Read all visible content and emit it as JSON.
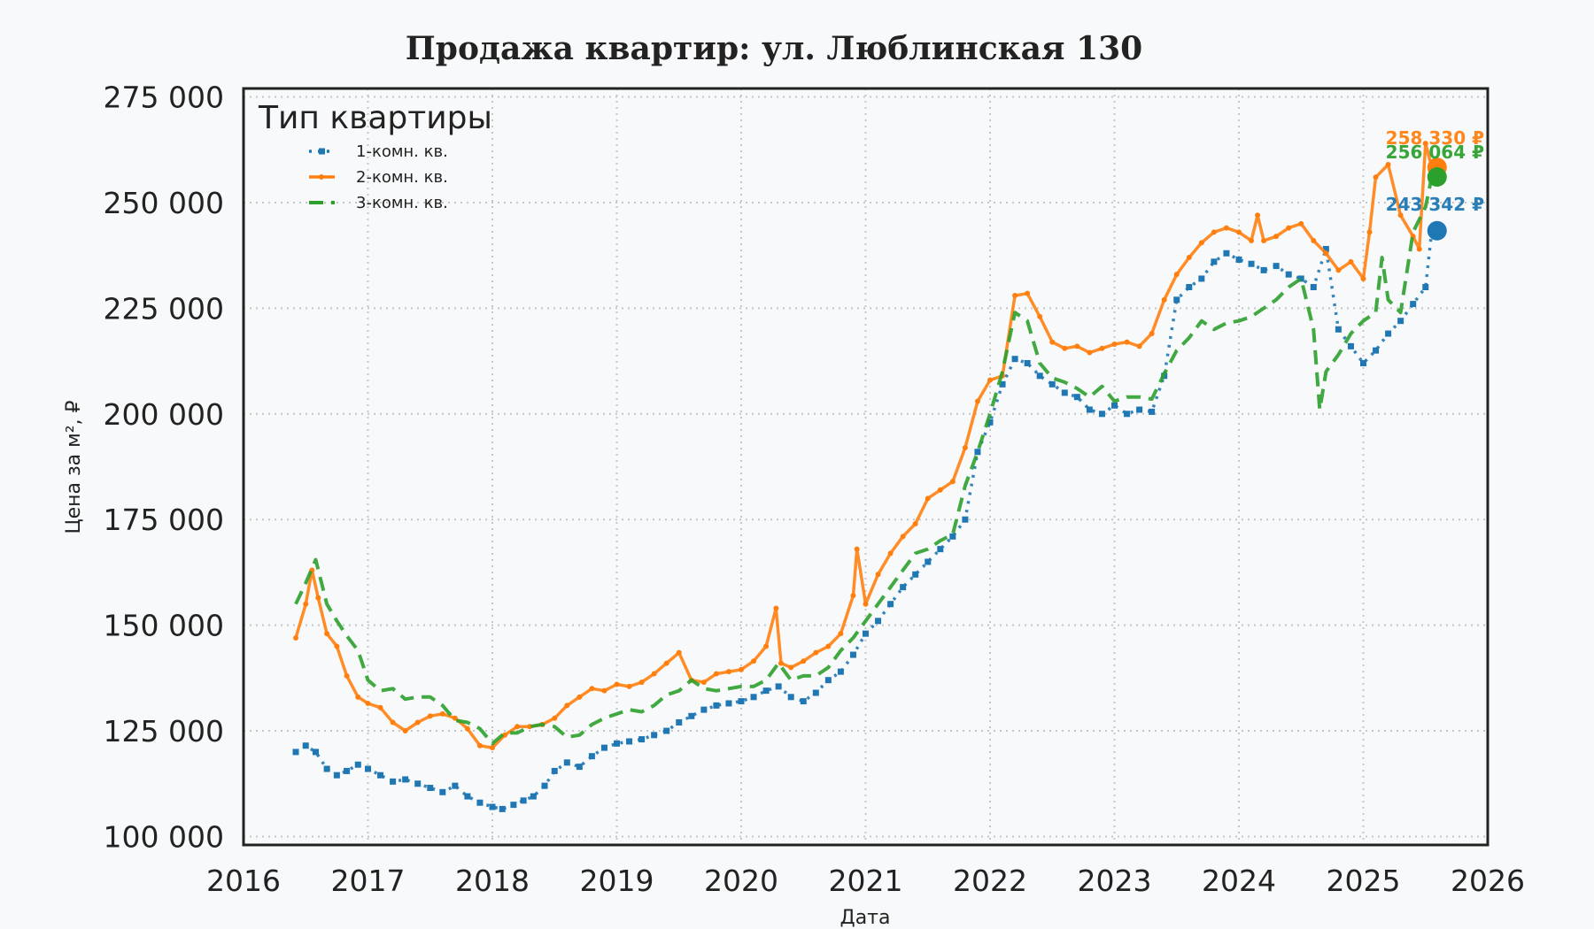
{
  "chart_data": {
    "type": "line",
    "title": "Продажа квартир: ул. Люблинская 130",
    "xlabel": "Дата",
    "ylabel": "Цена за м², ₽",
    "xlim": [
      2016,
      2026
    ],
    "ylim": [
      98000,
      277000
    ],
    "x_ticks": [
      "2016",
      "2017",
      "2018",
      "2019",
      "2020",
      "2021",
      "2022",
      "2023",
      "2024",
      "2025",
      "2026"
    ],
    "y_ticks": [
      "100 000",
      "125 000",
      "150 000",
      "175 000",
      "200 000",
      "225 000",
      "250 000",
      "275 000"
    ],
    "y_tick_values": [
      100000,
      125000,
      150000,
      175000,
      200000,
      225000,
      250000,
      275000
    ],
    "grid": true,
    "legend": {
      "title": "Тип квартиры",
      "position": "top-left"
    },
    "series": [
      {
        "name": "1-комн. кв.",
        "color": "#1f77b4",
        "style": "dotted-square",
        "end_label": "243 342 ₽",
        "end_value": 243342,
        "x": [
          2016.42,
          2016.5,
          2016.58,
          2016.67,
          2016.75,
          2016.83,
          2016.92,
          2017.0,
          2017.1,
          2017.2,
          2017.3,
          2017.4,
          2017.5,
          2017.6,
          2017.7,
          2017.8,
          2017.9,
          2018.0,
          2018.08,
          2018.17,
          2018.25,
          2018.33,
          2018.42,
          2018.5,
          2018.6,
          2018.7,
          2018.8,
          2018.9,
          2019.0,
          2019.1,
          2019.2,
          2019.3,
          2019.4,
          2019.5,
          2019.6,
          2019.7,
          2019.8,
          2019.9,
          2020.0,
          2020.1,
          2020.2,
          2020.3,
          2020.4,
          2020.5,
          2020.6,
          2020.7,
          2020.8,
          2020.9,
          2021.0,
          2021.1,
          2021.2,
          2021.3,
          2021.4,
          2021.5,
          2021.6,
          2021.7,
          2021.8,
          2021.9,
          2022.0,
          2022.1,
          2022.2,
          2022.3,
          2022.4,
          2022.5,
          2022.6,
          2022.7,
          2022.8,
          2022.9,
          2023.0,
          2023.1,
          2023.2,
          2023.3,
          2023.4,
          2023.5,
          2023.6,
          2023.7,
          2023.8,
          2023.9,
          2024.0,
          2024.1,
          2024.2,
          2024.3,
          2024.4,
          2024.5,
          2024.6,
          2024.7,
          2024.8,
          2024.9,
          2025.0,
          2025.1,
          2025.2,
          2025.3,
          2025.4,
          2025.5,
          2025.55
        ],
        "values": [
          120000,
          121500,
          120000,
          116000,
          114500,
          115500,
          117000,
          116000,
          114500,
          113000,
          113500,
          112500,
          111500,
          110500,
          112000,
          109500,
          108000,
          107000,
          106500,
          107500,
          108500,
          109500,
          112000,
          115500,
          117500,
          116500,
          119000,
          121000,
          122000,
          122500,
          123000,
          124000,
          125000,
          127000,
          128500,
          130000,
          131000,
          131500,
          132000,
          133000,
          134500,
          135500,
          133000,
          132000,
          134000,
          137000,
          139000,
          143000,
          148000,
          151000,
          155000,
          159000,
          162000,
          165000,
          168000,
          171000,
          175000,
          191000,
          198000,
          207000,
          213000,
          212000,
          209000,
          207000,
          205000,
          204000,
          201000,
          200000,
          202000,
          200000,
          201000,
          200500,
          209000,
          227000,
          230000,
          232000,
          236000,
          238000,
          236500,
          235500,
          234000,
          235000,
          233000,
          232000,
          230000,
          239000,
          220000,
          216000,
          212000,
          215000,
          219000,
          222000,
          226000,
          230000,
          243342
        ]
      },
      {
        "name": "2-комн. кв.",
        "color": "#ff7f0e",
        "style": "solid-dot",
        "end_label": "258 330 ₽",
        "end_value": 258330,
        "x": [
          2016.42,
          2016.5,
          2016.55,
          2016.6,
          2016.67,
          2016.75,
          2016.83,
          2016.92,
          2017.0,
          2017.1,
          2017.2,
          2017.3,
          2017.4,
          2017.5,
          2017.6,
          2017.7,
          2017.8,
          2017.9,
          2018.0,
          2018.1,
          2018.2,
          2018.3,
          2018.4,
          2018.5,
          2018.6,
          2018.7,
          2018.8,
          2018.9,
          2019.0,
          2019.1,
          2019.2,
          2019.3,
          2019.4,
          2019.5,
          2019.6,
          2019.7,
          2019.8,
          2019.9,
          2020.0,
          2020.1,
          2020.2,
          2020.28,
          2020.32,
          2020.4,
          2020.5,
          2020.6,
          2020.7,
          2020.8,
          2020.9,
          2020.93,
          2021.0,
          2021.1,
          2021.2,
          2021.3,
          2021.4,
          2021.5,
          2021.6,
          2021.7,
          2021.8,
          2021.9,
          2022.0,
          2022.1,
          2022.2,
          2022.3,
          2022.4,
          2022.5,
          2022.6,
          2022.7,
          2022.8,
          2022.9,
          2023.0,
          2023.1,
          2023.2,
          2023.3,
          2023.4,
          2023.5,
          2023.6,
          2023.7,
          2023.8,
          2023.9,
          2024.0,
          2024.1,
          2024.15,
          2024.2,
          2024.3,
          2024.4,
          2024.5,
          2024.6,
          2024.7,
          2024.8,
          2024.9,
          2025.0,
          2025.05,
          2025.1,
          2025.2,
          2025.3,
          2025.4,
          2025.45,
          2025.5,
          2025.55
        ],
        "values": [
          147000,
          155000,
          163000,
          156500,
          148000,
          145000,
          138000,
          133000,
          131500,
          130500,
          127000,
          125000,
          127000,
          128500,
          129000,
          128000,
          125500,
          121500,
          121000,
          124000,
          126000,
          126000,
          126500,
          128000,
          131000,
          133000,
          135000,
          134500,
          136000,
          135500,
          136500,
          138500,
          141000,
          143500,
          137000,
          136500,
          138500,
          139000,
          139500,
          141500,
          145000,
          154000,
          141000,
          140000,
          141500,
          143500,
          145000,
          148000,
          157000,
          168000,
          155000,
          162000,
          167000,
          171000,
          174000,
          180000,
          182000,
          184000,
          192000,
          203000,
          208000,
          209000,
          228000,
          228500,
          223000,
          217000,
          215500,
          216000,
          214500,
          215500,
          216500,
          217000,
          216000,
          219000,
          227000,
          233000,
          237000,
          240500,
          243000,
          244000,
          243000,
          241000,
          247000,
          241000,
          242000,
          244000,
          245000,
          241000,
          238000,
          234000,
          236000,
          232000,
          243000,
          256000,
          259000,
          247000,
          242000,
          239000,
          264000,
          258330
        ]
      },
      {
        "name": "3-комн. кв.",
        "color": "#2ca02c",
        "style": "dashed",
        "end_label": "256 064 ₽",
        "end_value": 256064,
        "x": [
          2016.42,
          2016.5,
          2016.58,
          2016.67,
          2016.75,
          2016.83,
          2016.92,
          2017.0,
          2017.1,
          2017.2,
          2017.3,
          2017.4,
          2017.5,
          2017.6,
          2017.7,
          2017.8,
          2017.9,
          2018.0,
          2018.1,
          2018.2,
          2018.3,
          2018.4,
          2018.5,
          2018.6,
          2018.7,
          2018.8,
          2018.9,
          2019.0,
          2019.1,
          2019.2,
          2019.3,
          2019.4,
          2019.5,
          2019.6,
          2019.7,
          2019.8,
          2019.9,
          2020.0,
          2020.1,
          2020.2,
          2020.3,
          2020.4,
          2020.5,
          2020.6,
          2020.7,
          2020.8,
          2020.9,
          2021.0,
          2021.1,
          2021.2,
          2021.3,
          2021.4,
          2021.5,
          2021.6,
          2021.7,
          2021.8,
          2021.9,
          2022.0,
          2022.1,
          2022.2,
          2022.3,
          2022.4,
          2022.5,
          2022.6,
          2022.7,
          2022.8,
          2022.9,
          2023.0,
          2023.1,
          2023.2,
          2023.3,
          2023.4,
          2023.5,
          2023.6,
          2023.7,
          2023.8,
          2023.9,
          2024.0,
          2024.1,
          2024.2,
          2024.3,
          2024.4,
          2024.5,
          2024.6,
          2024.65,
          2024.7,
          2024.8,
          2024.9,
          2025.0,
          2025.1,
          2025.15,
          2025.2,
          2025.3,
          2025.4,
          2025.5,
          2025.55
        ],
        "values": [
          155000,
          160000,
          165500,
          155000,
          151000,
          147500,
          144000,
          137000,
          134500,
          135000,
          132500,
          133000,
          133000,
          131000,
          127500,
          127000,
          125500,
          122000,
          124500,
          124500,
          126000,
          126500,
          126000,
          123500,
          124000,
          126500,
          128000,
          129000,
          130000,
          129500,
          131000,
          133500,
          134500,
          137000,
          135000,
          134500,
          135000,
          135500,
          135500,
          137000,
          141000,
          137000,
          138000,
          138000,
          140000,
          144000,
          147000,
          151000,
          155000,
          159000,
          163000,
          167000,
          168000,
          170000,
          171500,
          183000,
          191000,
          200000,
          210000,
          224000,
          222000,
          212000,
          208500,
          207500,
          206000,
          204000,
          206500,
          203000,
          204000,
          204000,
          203500,
          209500,
          215000,
          218000,
          222000,
          220000,
          221500,
          222000,
          223000,
          225000,
          227000,
          230000,
          232000,
          220000,
          201000,
          210000,
          214000,
          219000,
          222000,
          224000,
          237000,
          227000,
          224000,
          243000,
          249000,
          256064
        ]
      }
    ]
  }
}
